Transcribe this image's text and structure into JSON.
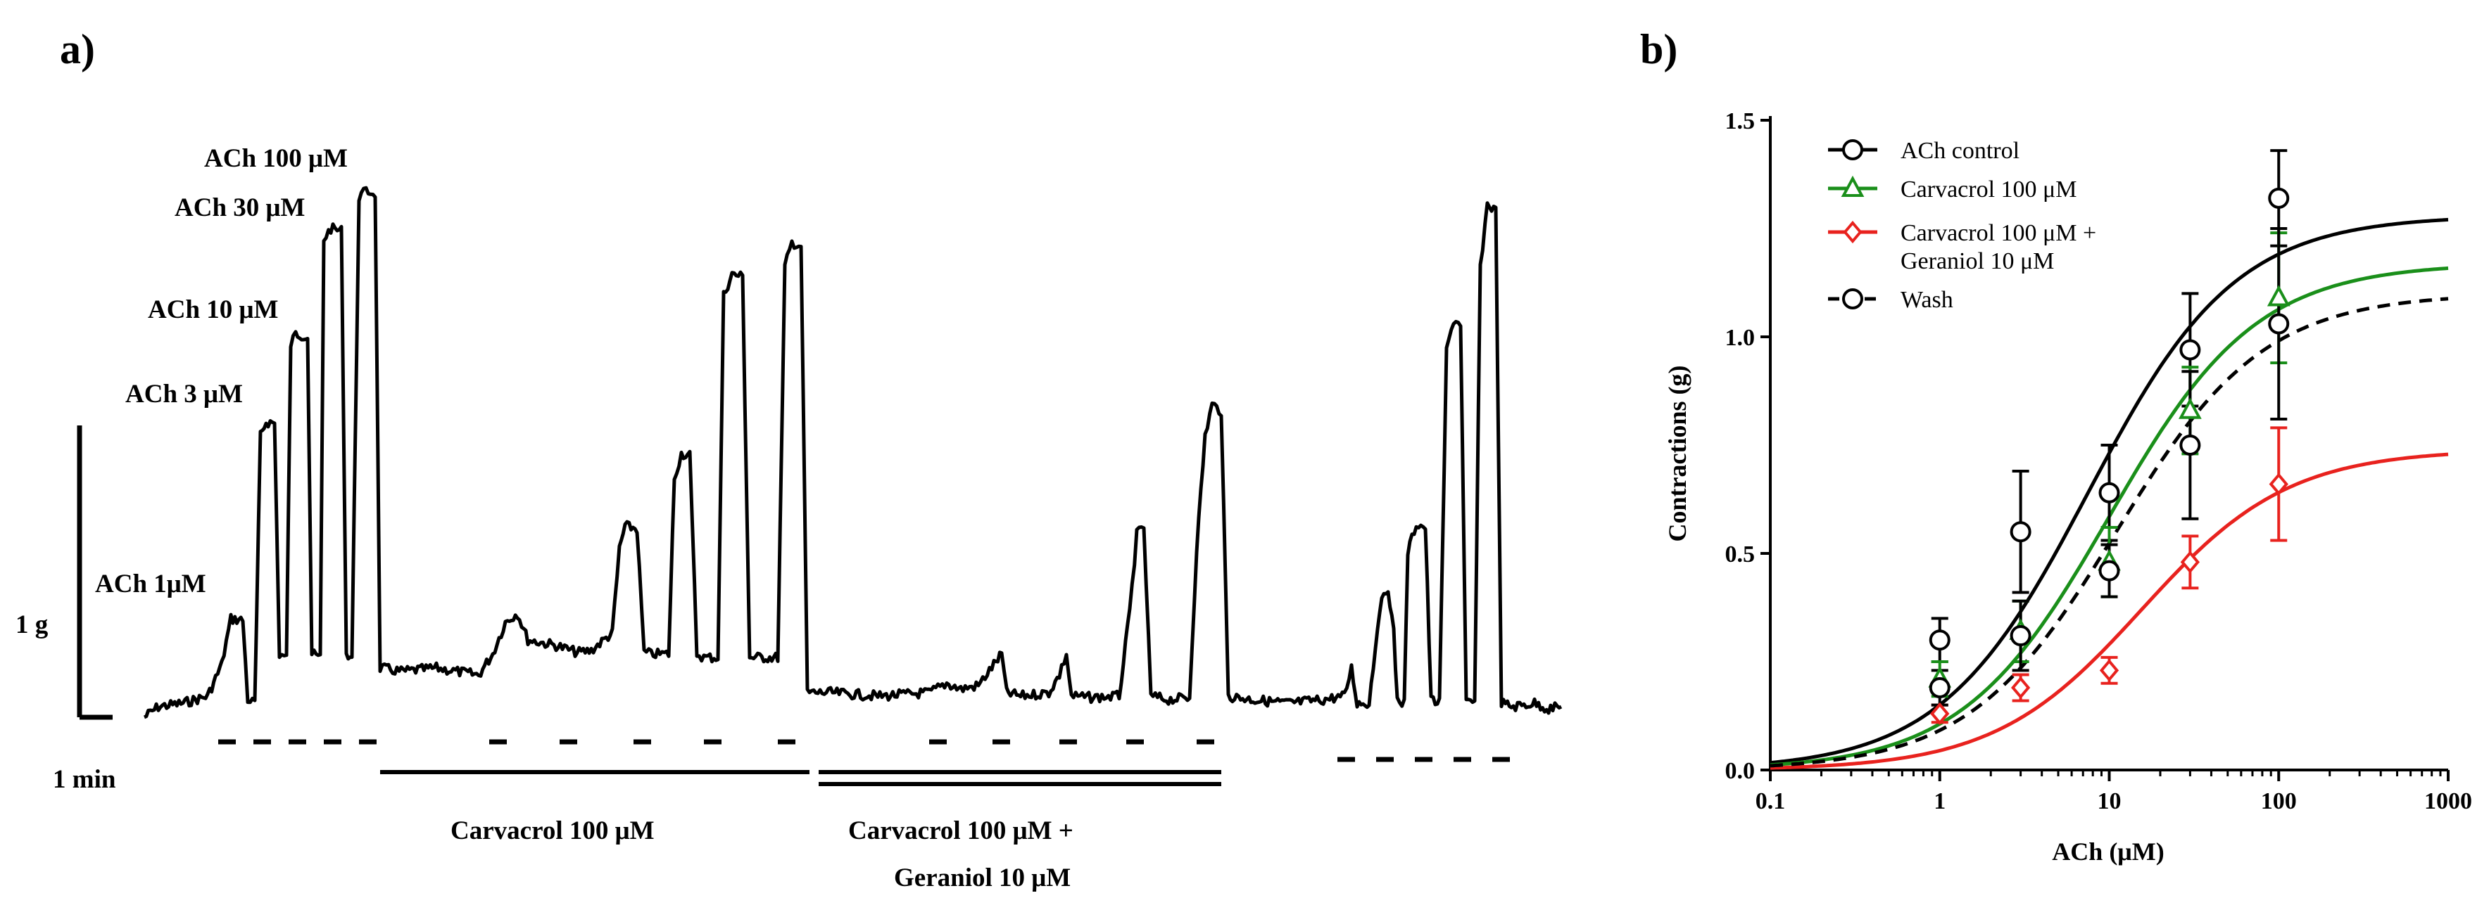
{
  "panels": {
    "a": "a)",
    "b": "b)"
  },
  "trace_panel": {
    "ach_labels": [
      "ACh 1μM",
      "ACh 3 μM",
      "ACh 10 μM",
      "ACh 30 μM",
      "ACh 100 μM"
    ],
    "scale_y": "1 g",
    "scale_x": "1 min",
    "treatments": [
      "Carvacrol 100 μM",
      "Carvacrol 100 μM +",
      "Geraniol 10 μM"
    ]
  },
  "chart_data": {
    "type": "line",
    "xlabel": "ACh (μM)",
    "ylabel": "Contractions (g)",
    "xscale": "log",
    "xlim": [
      0.1,
      1000
    ],
    "ylim": [
      0,
      1.5
    ],
    "xticks": [
      "0.1",
      "1",
      "10",
      "100",
      "1000"
    ],
    "yticks": [
      "0.0",
      "0.5",
      "1.0",
      "1.5"
    ],
    "legend_position": "top-left",
    "x": [
      1,
      3,
      10,
      30,
      100
    ],
    "series": [
      {
        "name": "ACh control",
        "color": "#000000",
        "marker": "circle",
        "line": "solid",
        "values": [
          0.3,
          0.55,
          0.64,
          0.97,
          1.32
        ],
        "errors": [
          0.05,
          0.14,
          0.11,
          0.13,
          0.11
        ],
        "fit": {
          "bottom": 0,
          "top": 1.28,
          "ec50": 7.5
        }
      },
      {
        "name": "Carvacrol 100 μM",
        "color": "#1a8f1a",
        "marker": "triangle",
        "line": "solid",
        "values": [
          0.21,
          0.32,
          0.48,
          0.83,
          1.09
        ],
        "errors": [
          0.04,
          0.07,
          0.08,
          0.1,
          0.15
        ],
        "fit": {
          "bottom": 0,
          "top": 1.17,
          "ec50": 10.0
        }
      },
      {
        "name": "Carvacrol 100 μM + Geraniol 10 μM",
        "color": "#e8221e",
        "marker": "diamond",
        "line": "solid",
        "values": [
          0.13,
          0.19,
          0.23,
          0.48,
          0.66
        ],
        "errors": [
          0.02,
          0.03,
          0.03,
          0.06,
          0.13
        ],
        "fit": {
          "bottom": 0,
          "top": 0.74,
          "ec50": 15.5
        }
      },
      {
        "name": "Wash",
        "color": "#000000",
        "marker": "circle",
        "line": "dashed",
        "values": [
          0.19,
          0.31,
          0.46,
          0.75,
          1.03
        ],
        "errors": [
          0.04,
          0.08,
          0.06,
          0.17,
          0.22
        ],
        "fit": {
          "bottom": 0,
          "top": 1.1,
          "ec50": 11.0
        }
      }
    ]
  }
}
